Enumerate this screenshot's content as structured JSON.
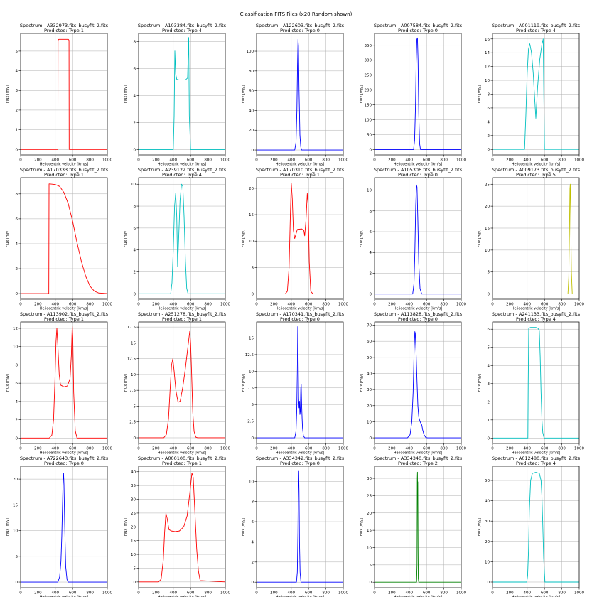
{
  "figure_title": "Classification FITS Files (x20 Random shown)",
  "colors": {
    "Type 0": "#0000ff",
    "Type 1": "#ff0000",
    "Type 2": "#008000",
    "Type 4": "#00bfbf",
    "Type 5": "#bfbf00"
  },
  "chart_data": [
    {
      "type": "line",
      "title": "Spectrum - A332973.fits_busyfit_2.fits",
      "subtitle": "Predicted: Type 1",
      "xlabel": "Heliocentric velocity [km/s]",
      "ylabel": "Flux [mJy]",
      "xlim": [
        0,
        1000
      ],
      "ylim": [
        -0.28,
        5.9
      ],
      "xticks": [
        0,
        200,
        400,
        600,
        800,
        1000
      ],
      "yticks": [
        0,
        1,
        2,
        3,
        4,
        5
      ],
      "grid": true,
      "color": "#ff0000",
      "x": [
        0,
        430,
        432,
        440,
        550,
        558,
        560,
        1000
      ],
      "y": [
        0,
        0,
        5.55,
        5.6,
        5.6,
        5.55,
        0,
        0
      ]
    },
    {
      "type": "line",
      "title": "Spectrum - A103384.fits_busyfit_2.fits",
      "subtitle": "Predicted: Type 4",
      "xlabel": "Heliocentric velocity [km/s]",
      "ylabel": "Flux [mJy]",
      "xlim": [
        0,
        1000
      ],
      "ylim": [
        -0.4,
        8.6
      ],
      "xticks": [
        0,
        200,
        400,
        600,
        800,
        1000
      ],
      "yticks": [
        0,
        2,
        4,
        6,
        8
      ],
      "grid": true,
      "color": "#00bfbf",
      "x": [
        0,
        400,
        410,
        418,
        428,
        440,
        470,
        500,
        540,
        565,
        572,
        578,
        585,
        600,
        1000
      ],
      "y": [
        0,
        0,
        2.5,
        7.3,
        5.6,
        5.2,
        5.15,
        5.15,
        5.15,
        5.3,
        7.0,
        8.3,
        2.5,
        0,
        0
      ]
    },
    {
      "type": "line",
      "title": "Spectrum - A122603.fits_busyfit_2.fits",
      "subtitle": "Predicted: Type 0",
      "xlabel": "Heliocentric velocity [km/s]",
      "ylabel": "Flux [mJy]",
      "xlim": [
        0,
        1000
      ],
      "ylim": [
        -5,
        118
      ],
      "xticks": [
        0,
        200,
        400,
        600,
        800,
        1000
      ],
      "yticks": [
        0,
        20,
        40,
        60,
        80,
        100
      ],
      "grid": true,
      "color": "#0000ff",
      "x": [
        0,
        440,
        455,
        465,
        472,
        478,
        483,
        490,
        500,
        510,
        520,
        1000
      ],
      "y": [
        0,
        0,
        8,
        40,
        85,
        112,
        105,
        60,
        15,
        3,
        0,
        0
      ]
    },
    {
      "type": "line",
      "title": "Spectrum - A007584.fits_busyfit_2.fits",
      "subtitle": "Predicted: Type 0",
      "xlabel": "Heliocentric velocity [km/s]",
      "ylabel": "Flux [mJy]",
      "xlim": [
        0,
        1000
      ],
      "ylim": [
        -18,
        390
      ],
      "xticks": [
        0,
        200,
        400,
        600,
        800,
        1000
      ],
      "yticks": [
        0,
        50,
        100,
        150,
        200,
        250,
        300,
        350
      ],
      "grid": true,
      "color": "#0000ff",
      "x": [
        0,
        450,
        462,
        472,
        480,
        488,
        495,
        502,
        510,
        520,
        530,
        1000
      ],
      "y": [
        0,
        0,
        30,
        140,
        290,
        370,
        375,
        300,
        120,
        20,
        0,
        0
      ]
    },
    {
      "type": "line",
      "title": "Spectrum - A001119.fits_busyfit_2.fits",
      "subtitle": "Predicted: Type 4",
      "xlabel": "Heliocentric velocity [km/s]",
      "ylabel": "Flux [mJy]",
      "xlim": [
        0,
        1000
      ],
      "ylim": [
        -0.8,
        16.8
      ],
      "xticks": [
        0,
        200,
        400,
        600,
        800,
        1000
      ],
      "yticks": [
        0,
        2,
        4,
        6,
        8,
        10,
        12,
        14,
        16
      ],
      "grid": true,
      "color": "#00bfbf",
      "x": [
        0,
        370,
        385,
        400,
        415,
        430,
        450,
        470,
        488,
        500,
        520,
        545,
        570,
        585,
        592,
        600,
        1000
      ],
      "y": [
        0,
        0,
        5,
        11,
        14.5,
        15.3,
        14,
        11,
        7,
        4.5,
        9,
        13,
        15.2,
        16,
        8,
        0,
        0
      ]
    },
    {
      "type": "line",
      "title": "Spectrum - A170333.fits_busyfit_2.fits",
      "subtitle": "Predicted: Type 1",
      "xlabel": "Heliocentric velocity [km/s]",
      "ylabel": "Flux [mJy]",
      "xlim": [
        0,
        1000
      ],
      "ylim": [
        -0.45,
        9.3
      ],
      "xticks": [
        0,
        200,
        400,
        600,
        800,
        1000
      ],
      "yticks": [
        0,
        2,
        4,
        6,
        8
      ],
      "grid": true,
      "color": "#ff0000",
      "x": [
        0,
        325,
        328,
        335,
        400,
        450,
        500,
        550,
        600,
        650,
        700,
        750,
        800,
        850,
        900,
        1000
      ],
      "y": [
        0,
        0,
        8.8,
        8.8,
        8.75,
        8.6,
        8.1,
        7.2,
        5.8,
        4.1,
        2.6,
        1.4,
        0.6,
        0.2,
        0.05,
        0
      ]
    },
    {
      "type": "line",
      "title": "Spectrum - A239122.fits_busyfit_2.fits",
      "subtitle": "Predicted: Type 4",
      "xlabel": "Heliocentric velocity [km/s]",
      "ylabel": "Flux [mJy]",
      "xlim": [
        0,
        1000
      ],
      "ylim": [
        -0.5,
        10.6
      ],
      "xticks": [
        0,
        200,
        400,
        600,
        800,
        1000
      ],
      "yticks": [
        0,
        2,
        4,
        6,
        8,
        10
      ],
      "grid": true,
      "color": "#00bfbf",
      "x": [
        0,
        370,
        385,
        400,
        415,
        428,
        440,
        450,
        462,
        478,
        495,
        510,
        525,
        540,
        555,
        570,
        1000
      ],
      "y": [
        0,
        0,
        1,
        4,
        8,
        9.2,
        7,
        2.5,
        5,
        8.5,
        10,
        9.8,
        7,
        3,
        0.5,
        0,
        0
      ]
    },
    {
      "type": "line",
      "title": "Spectrum - A170310.fits_busyfit_2.fits",
      "subtitle": "Predicted: Type 1",
      "xlabel": "Heliocentric velocity [km/s]",
      "ylabel": "Flux [mJy]",
      "xlim": [
        0,
        1000
      ],
      "ylim": [
        -1,
        22
      ],
      "xticks": [
        0,
        200,
        400,
        600,
        800,
        1000
      ],
      "yticks": [
        0,
        5,
        10,
        15,
        20
      ],
      "grid": true,
      "color": "#ff0000",
      "x": [
        0,
        330,
        355,
        375,
        390,
        400,
        412,
        425,
        440,
        470,
        520,
        545,
        555,
        570,
        585,
        595,
        608,
        625,
        650,
        1000
      ],
      "y": [
        0,
        0,
        0.5,
        5,
        15,
        21,
        18,
        12,
        10.5,
        12.2,
        12.3,
        12,
        11,
        14,
        19,
        17,
        6,
        0.5,
        0,
        0
      ]
    },
    {
      "type": "line",
      "title": "Spectrum - A105306.fits_busyfit_2.fits",
      "subtitle": "Predicted: Type 0",
      "xlabel": "Heliocentric velocity [km/s]",
      "ylabel": "Flux [mJy]",
      "xlim": [
        0,
        1000
      ],
      "ylim": [
        -0.5,
        11.2
      ],
      "xticks": [
        0,
        200,
        400,
        600,
        800,
        1000
      ],
      "yticks": [
        0,
        2,
        4,
        6,
        8,
        10
      ],
      "grid": true,
      "color": "#0000ff",
      "x": [
        0,
        440,
        455,
        465,
        475,
        483,
        490,
        500,
        510,
        525,
        545,
        1000
      ],
      "y": [
        0,
        0,
        1,
        4,
        8.5,
        10.5,
        10.3,
        7,
        3,
        0.5,
        0,
        0
      ]
    },
    {
      "type": "line",
      "title": "Spectrum - A009173.fits_busyfit_2.fits",
      "subtitle": "Predicted: Type 5",
      "xlabel": "Heliocentric velocity [km/s]",
      "ylabel": "Flux [mJy]",
      "xlim": [
        0,
        1000
      ],
      "ylim": [
        -1.2,
        26.5
      ],
      "xticks": [
        0,
        200,
        400,
        600,
        800,
        1000
      ],
      "yticks": [
        0,
        5,
        10,
        15,
        20,
        25
      ],
      "grid": true,
      "color": "#bfbf00",
      "x": [
        0,
        870,
        880,
        888,
        893,
        897,
        902,
        910,
        920,
        1000
      ],
      "y": [
        0,
        0,
        4,
        15,
        24,
        25,
        18,
        5,
        0,
        0
      ]
    },
    {
      "type": "line",
      "title": "Spectrum - A113902.fits_busyfit_2.fits",
      "subtitle": "Predicted: Type 1",
      "xlabel": "Heliocentric velocity [km/s]",
      "ylabel": "Flux [mJy]",
      "xlim": [
        0,
        1000
      ],
      "ylim": [
        -0.6,
        12.7
      ],
      "xticks": [
        0,
        200,
        400,
        600,
        800,
        1000
      ],
      "yticks": [
        0,
        2,
        4,
        6,
        8,
        10,
        12
      ],
      "grid": true,
      "color": "#ff0000",
      "x": [
        0,
        330,
        360,
        380,
        395,
        408,
        418,
        430,
        445,
        460,
        500,
        540,
        570,
        585,
        595,
        602,
        612,
        630,
        650,
        1000
      ],
      "y": [
        0,
        0,
        0.3,
        2,
        6,
        10.5,
        12,
        10,
        7,
        5.8,
        5.6,
        5.7,
        6.5,
        9,
        12.3,
        11,
        5,
        0.8,
        0,
        0
      ]
    },
    {
      "type": "line",
      "title": "Spectrum - A251278.fits_busyfit_2.fits",
      "subtitle": "Predicted: Type 1",
      "xlabel": "Heliocentric velocity [km/s]",
      "ylabel": "Flux [mJy]",
      "xlim": [
        0,
        1000
      ],
      "ylim": [
        -0.9,
        18.3
      ],
      "xticks": [
        0,
        200,
        400,
        600,
        800,
        1000
      ],
      "yticks": [
        0,
        2.5,
        5,
        7.5,
        10,
        12.5,
        15,
        17.5
      ],
      "grid": true,
      "color": "#ff0000",
      "x": [
        0,
        290,
        320,
        345,
        365,
        380,
        395,
        410,
        430,
        455,
        480,
        510,
        540,
        570,
        590,
        600,
        612,
        625,
        640,
        660,
        680,
        1000
      ],
      "y": [
        0,
        0,
        0.5,
        3,
        8,
        11.5,
        12.5,
        10.5,
        7.5,
        5.6,
        5.8,
        8,
        11,
        14.5,
        16.8,
        15,
        10,
        4,
        1,
        0.1,
        0,
        0
      ]
    },
    {
      "type": "line",
      "title": "Spectrum - A170341.fits_busyfit_2.fits",
      "subtitle": "Predicted: Type 0",
      "xlabel": "Heliocentric velocity [km/s]",
      "ylabel": "Flux [mJy]",
      "xlim": [
        0,
        1000
      ],
      "ylim": [
        -0.85,
        17.4
      ],
      "xticks": [
        0,
        200,
        400,
        600,
        800,
        1000
      ],
      "yticks": [
        0,
        2.5,
        5,
        7.5,
        10,
        12.5,
        15
      ],
      "grid": true,
      "color": "#0000ff",
      "x": [
        0,
        440,
        455,
        463,
        470,
        475,
        480,
        485,
        490,
        495,
        500,
        505,
        510,
        515,
        520,
        525,
        530,
        540,
        555,
        1000
      ],
      "y": [
        0,
        0,
        1,
        4,
        10,
        16.7,
        12,
        6,
        4.5,
        5.5,
        3.5,
        4,
        7.5,
        8,
        5,
        3,
        1.5,
        0.3,
        0,
        0
      ]
    },
    {
      "type": "line",
      "title": "Spectrum - A113828.fits_busyfit_2.fits",
      "subtitle": "Predicted: Type 0",
      "xlabel": "Heliocentric velocity [km/s]",
      "ylabel": "Flux [mJy]",
      "xlim": [
        0,
        1000
      ],
      "ylim": [
        -3.5,
        72
      ],
      "xticks": [
        0,
        200,
        400,
        600,
        800,
        1000
      ],
      "yticks": [
        0,
        10,
        20,
        30,
        40,
        50,
        60,
        70
      ],
      "grid": true,
      "color": "#0000ff",
      "x": [
        0,
        380,
        410,
        430,
        445,
        457,
        465,
        470,
        480,
        490,
        500,
        510,
        520,
        530,
        545,
        555,
        570,
        590,
        610,
        1000
      ],
      "y": [
        0,
        0,
        2,
        10,
        28,
        55,
        66,
        65,
        52,
        35,
        20,
        13,
        11,
        9.5,
        8,
        5,
        2,
        0.3,
        0,
        0
      ]
    },
    {
      "type": "line",
      "title": "Spectrum - A241133.fits_busyfit_2.fits",
      "subtitle": "Predicted: Type 4",
      "xlabel": "Heliocentric velocity [km/s]",
      "ylabel": "Flux [mJy]",
      "xlim": [
        0,
        1000
      ],
      "ylim": [
        -0.3,
        6.4
      ],
      "xticks": [
        0,
        200,
        400,
        600,
        800,
        1000
      ],
      "yticks": [
        0,
        1,
        2,
        3,
        4,
        5,
        6
      ],
      "grid": true,
      "color": "#00bfbf",
      "x": [
        0,
        408,
        412,
        418,
        440,
        500,
        525,
        540,
        550,
        560,
        570,
        580,
        595,
        1000
      ],
      "y": [
        0,
        0,
        3,
        6.05,
        6.1,
        6.1,
        6.05,
        5.9,
        4.5,
        2.5,
        1,
        0.3,
        0,
        0
      ]
    },
    {
      "type": "line",
      "title": "Spectrum - A722643.fits_busyfit_2.fits",
      "subtitle": "Predicted: Type 0",
      "xlabel": "Heliocentric velocity [km/s]",
      "ylabel": "Flux [mJy]",
      "xlim": [
        0,
        1000
      ],
      "ylim": [
        -1.1,
        22.5
      ],
      "xticks": [
        0,
        200,
        400,
        600,
        800,
        1000
      ],
      "yticks": [
        0,
        5,
        10,
        15,
        20
      ],
      "grid": true,
      "color": "#0000ff",
      "x": [
        0,
        430,
        450,
        465,
        475,
        483,
        490,
        495,
        500,
        510,
        520,
        535,
        550,
        1000
      ],
      "y": [
        0,
        0,
        1,
        4,
        9,
        15,
        20,
        21.2,
        19,
        10,
        3,
        0.5,
        0,
        0
      ]
    },
    {
      "type": "line",
      "title": "Spectrum - A000100.fits_busyfit_2.fits",
      "subtitle": "Predicted: Type 1",
      "xlabel": "Heliocentric velocity [km/s]",
      "ylabel": "Flux [mJy]",
      "xlim": [
        0,
        1000
      ],
      "ylim": [
        -2.1,
        42
      ],
      "xticks": [
        0,
        200,
        400,
        600,
        800,
        1000
      ],
      "yticks": [
        0,
        5,
        10,
        15,
        20,
        25,
        30,
        35,
        40
      ],
      "grid": true,
      "color": "#ff0000",
      "x": [
        0,
        230,
        260,
        285,
        300,
        315,
        330,
        350,
        380,
        420,
        470,
        520,
        560,
        590,
        615,
        630,
        650,
        670,
        690,
        710,
        1000
      ],
      "y": [
        0,
        0,
        1,
        8,
        18,
        25,
        23,
        19,
        18.5,
        18.3,
        18.5,
        20,
        24,
        32,
        39.5,
        38,
        25,
        12,
        4,
        0.5,
        0
      ]
    },
    {
      "type": "line",
      "title": "Spectrum - A334342.fits_busyfit_2.fits",
      "subtitle": "Predicted: Type 0",
      "xlabel": "Heliocentric velocity [km/s]",
      "ylabel": "Flux [mJy]",
      "xlim": [
        0,
        1000
      ],
      "ylim": [
        -0.55,
        11.5
      ],
      "xticks": [
        0,
        200,
        400,
        600,
        800,
        1000
      ],
      "yticks": [
        0,
        2,
        4,
        6,
        8,
        10
      ],
      "grid": true,
      "color": "#0000ff",
      "x": [
        0,
        460,
        470,
        477,
        482,
        486,
        490,
        495,
        502,
        512,
        1000
      ],
      "y": [
        0,
        0,
        1,
        5,
        10,
        11,
        9,
        4,
        1,
        0,
        0
      ]
    },
    {
      "type": "line",
      "title": "Spectrum - A334340.fits_busyfit_2.fits",
      "subtitle": "Predicted: Type 2",
      "xlabel": "Heliocentric velocity [km/s]",
      "ylabel": "Flux [mJy]",
      "xlim": [
        0,
        1000
      ],
      "ylim": [
        -1.6,
        33.5
      ],
      "xticks": [
        0,
        200,
        400,
        600,
        800,
        1000
      ],
      "yticks": [
        0,
        5,
        10,
        15,
        20,
        25,
        30
      ],
      "grid": true,
      "color": "#008000",
      "x": [
        0,
        485,
        490,
        493,
        495,
        497,
        499,
        502,
        505,
        510,
        1000
      ],
      "y": [
        0,
        0,
        5,
        30,
        31.8,
        26,
        29,
        10,
        1,
        0,
        0
      ]
    },
    {
      "type": "line",
      "title": "Spectrum - A012480.fits_busyfit_2.fits",
      "subtitle": "Predicted: Type 4",
      "xlabel": "Heliocentric velocity [km/s]",
      "ylabel": "Flux [mJy]",
      "xlim": [
        0,
        1000
      ],
      "ylim": [
        -2.8,
        57
      ],
      "xticks": [
        0,
        200,
        400,
        600,
        800,
        1000
      ],
      "yticks": [
        0,
        10,
        20,
        30,
        40,
        50
      ],
      "grid": true,
      "color": "#00bfbf",
      "x": [
        0,
        395,
        405,
        415,
        425,
        440,
        460,
        500,
        540,
        560,
        570,
        580,
        590,
        605,
        1000
      ],
      "y": [
        0,
        0,
        3,
        15,
        35,
        50,
        53.5,
        54,
        53.5,
        50,
        42,
        28,
        12,
        0,
        0
      ]
    }
  ]
}
